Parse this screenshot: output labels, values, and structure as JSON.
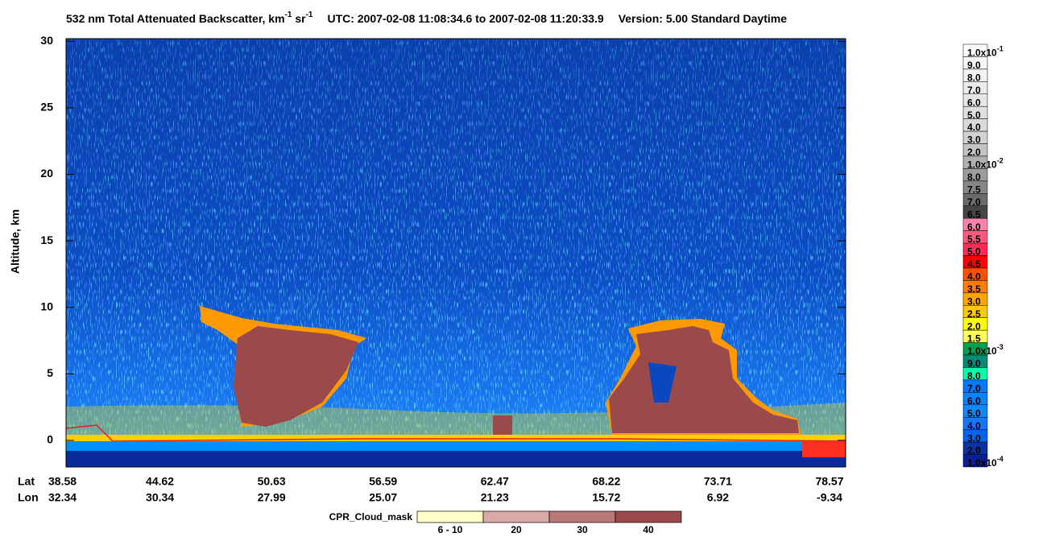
{
  "chart_data": {
    "type": "profile",
    "title": {
      "main": "532 nm Total Attenuated Backscatter, km",
      "exp1": "-1",
      "mid": " sr",
      "exp2": "-1",
      "utc": "UTC:  2007-02-08 11:08:34.6  to  2007-02-08 11:20:33.9",
      "version": "Version: 5.00  Standard  Daytime"
    },
    "ylabel": "Altitude, km",
    "ylim": [
      -2,
      30.2
    ],
    "yticks": [
      0,
      5,
      10,
      15,
      20,
      25,
      30
    ],
    "xlabels": {
      "lat": "Lat",
      "lon": "Lon"
    },
    "xticks": [
      {
        "lat": 38.58,
        "lon": 32.34
      },
      {
        "lat": 44.62,
        "lon": 30.34
      },
      {
        "lat": 50.63,
        "lon": 27.99
      },
      {
        "lat": 56.59,
        "lon": 25.07
      },
      {
        "lat": 62.47,
        "lon": 21.23
      },
      {
        "lat": 68.22,
        "lon": 15.72
      },
      {
        "lat": 73.71,
        "lon": 6.92
      },
      {
        "lat": 78.57,
        "lon": -9.34
      }
    ],
    "colorbar": [
      {
        "label": "1.0x10",
        "exp": "-1",
        "color": "#ffffff"
      },
      {
        "label": "9.0",
        "color": "#f8f8f8"
      },
      {
        "label": "8.0",
        "color": "#f2f2f2"
      },
      {
        "label": "7.0",
        "color": "#ececec"
      },
      {
        "label": "6.0",
        "color": "#e6e6e6"
      },
      {
        "label": "5.0",
        "color": "#e0e0e0"
      },
      {
        "label": "4.0",
        "color": "#dadada"
      },
      {
        "label": "3.0",
        "color": "#d2d2d2"
      },
      {
        "label": "2.0",
        "color": "#c4c4c4"
      },
      {
        "label": "1.0x10",
        "exp": "-2",
        "color": "#b0b0b0"
      },
      {
        "label": "8.0",
        "color": "#9c9c9c"
      },
      {
        "label": "7.5",
        "color": "#868686"
      },
      {
        "label": "7.0",
        "color": "#6a6a6a"
      },
      {
        "label": "6.5",
        "color": "#464646"
      },
      {
        "label": "6.0",
        "color": "#ff82aa"
      },
      {
        "label": "5.5",
        "color": "#ff5a7d"
      },
      {
        "label": "5.0",
        "color": "#ff2d55"
      },
      {
        "label": "4.5",
        "color": "#ff0000"
      },
      {
        "label": "4.0",
        "color": "#ff5000"
      },
      {
        "label": "3.5",
        "color": "#ff7d00"
      },
      {
        "label": "3.0",
        "color": "#ffa500"
      },
      {
        "label": "2.5",
        "color": "#ffc800"
      },
      {
        "label": "2.0",
        "color": "#ffff00"
      },
      {
        "label": "1.5",
        "color": "#ffff5a"
      },
      {
        "label": "1.0x10",
        "exp": "-3",
        "color": "#00a050"
      },
      {
        "label": "9.0",
        "color": "#008c78"
      },
      {
        "label": "8.0",
        "color": "#00ffaa"
      },
      {
        "label": "7.0",
        "color": "#0078ff"
      },
      {
        "label": "6.0",
        "color": "#0a82ff"
      },
      {
        "label": "5.0",
        "color": "#0f87ff"
      },
      {
        "label": "4.0",
        "color": "#1478ff"
      },
      {
        "label": "3.0",
        "color": "#0064f0"
      },
      {
        "label": "2.0",
        "color": "#0a32a0"
      },
      {
        "label": "1.0x10",
        "exp": "-4",
        "color": "#0a1e96"
      }
    ],
    "cloud_mask": {
      "title": "CPR_Cloud_mask",
      "items": [
        {
          "label": "6 - 10",
          "color": "#ffffc8"
        },
        {
          "label": "20",
          "color": "#d9aaa8"
        },
        {
          "label": "30",
          "color": "#b87878"
        },
        {
          "label": "40",
          "color": "#9a4a4a"
        }
      ]
    }
  }
}
